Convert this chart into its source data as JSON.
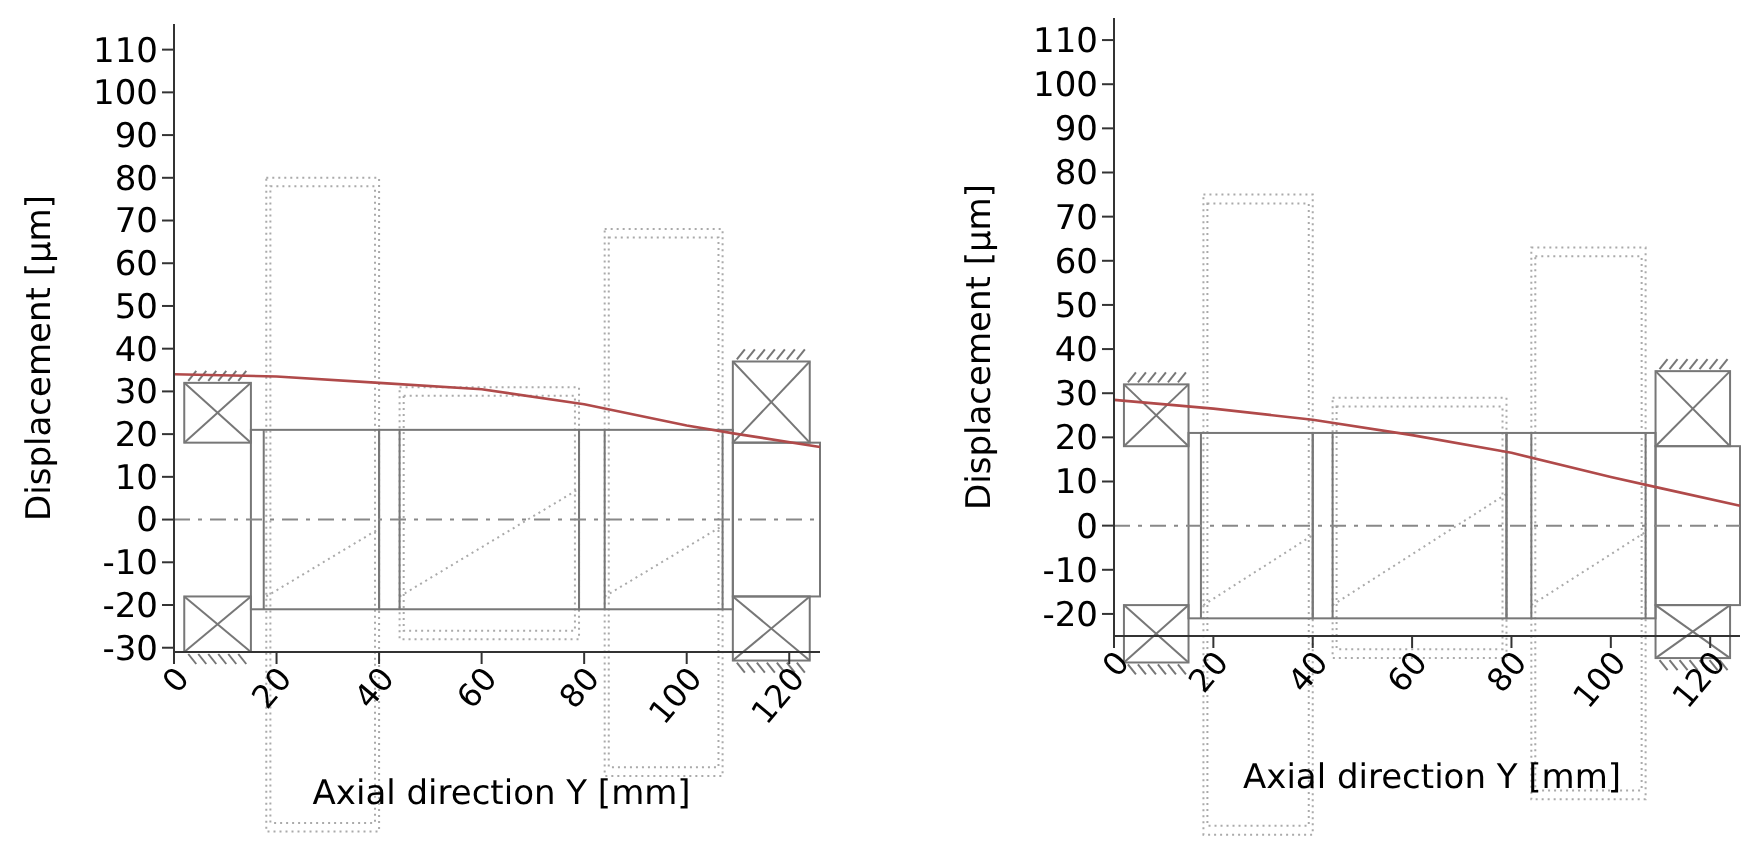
{
  "chart_data": [
    {
      "type": "line",
      "xlabel": "Axial direction Y [mm]",
      "ylabel": "Displacement [µm]",
      "x": [
        0,
        20,
        40,
        60,
        80,
        100,
        110,
        126
      ],
      "series": [
        {
          "color": "#b04a4a",
          "values": [
            34,
            33.5,
            32,
            30.5,
            27,
            22,
            20,
            17
          ]
        }
      ],
      "xlim": [
        0,
        126
      ],
      "ylim": [
        -31,
        116
      ],
      "xticks": [
        0,
        20,
        40,
        60,
        80,
        100,
        120
      ],
      "yticks": [
        -30,
        -20,
        -10,
        0,
        10,
        20,
        30,
        40,
        50,
        60,
        70,
        80,
        90,
        100,
        110
      ],
      "ref_lines": [
        {
          "axis": "y",
          "value": 0,
          "color": "#888888",
          "line_style": "dashed"
        }
      ]
    },
    {
      "type": "line",
      "xlabel": "Axial direction Y [mm]",
      "ylabel": "Displacement [µm]",
      "x": [
        0,
        20,
        40,
        60,
        80,
        100,
        110,
        126
      ],
      "series": [
        {
          "color": "#b04a4a",
          "values": [
            28.5,
            26.5,
            24,
            20.5,
            16.5,
            11,
            8.5,
            4.5
          ]
        }
      ],
      "xlim": [
        0,
        126
      ],
      "ylim": [
        -25,
        115
      ],
      "xticks": [
        0,
        20,
        40,
        60,
        80,
        100,
        120
      ],
      "yticks": [
        -20,
        -10,
        0,
        10,
        20,
        30,
        40,
        50,
        60,
        70,
        80,
        90,
        100,
        110
      ],
      "ref_lines": [
        {
          "axis": "y",
          "value": 0,
          "color": "#888888",
          "line_style": "dashed"
        }
      ]
    }
  ]
}
